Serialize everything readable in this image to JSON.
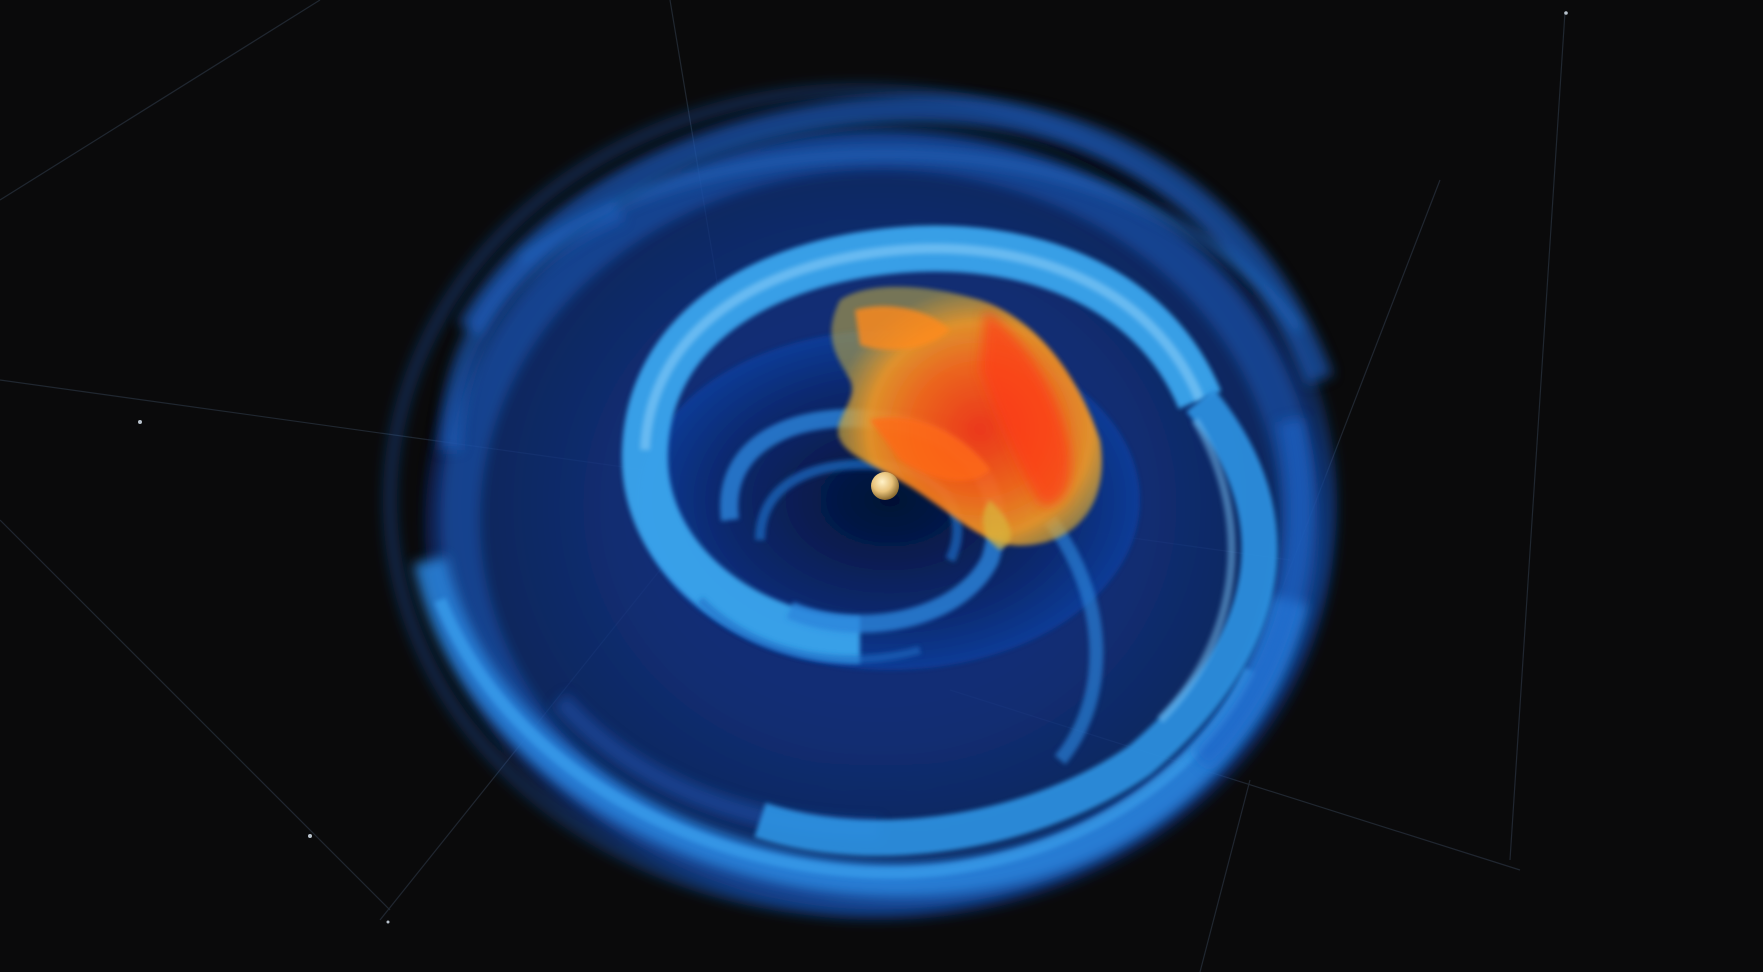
{
  "scene": {
    "background_color": "#0a0a0b",
    "disk_colors": {
      "deep": "#07163f",
      "mid": "#0d3d9a",
      "bright": "#1d74d4",
      "highlight": "#3aa6ee"
    },
    "hot_region_colors": {
      "core": "#ff3a12",
      "mid": "#ff8a1e",
      "edge": "#d8b43a"
    },
    "central_object_color": "#e8c27a",
    "grid_line_color": "#2a3340"
  }
}
